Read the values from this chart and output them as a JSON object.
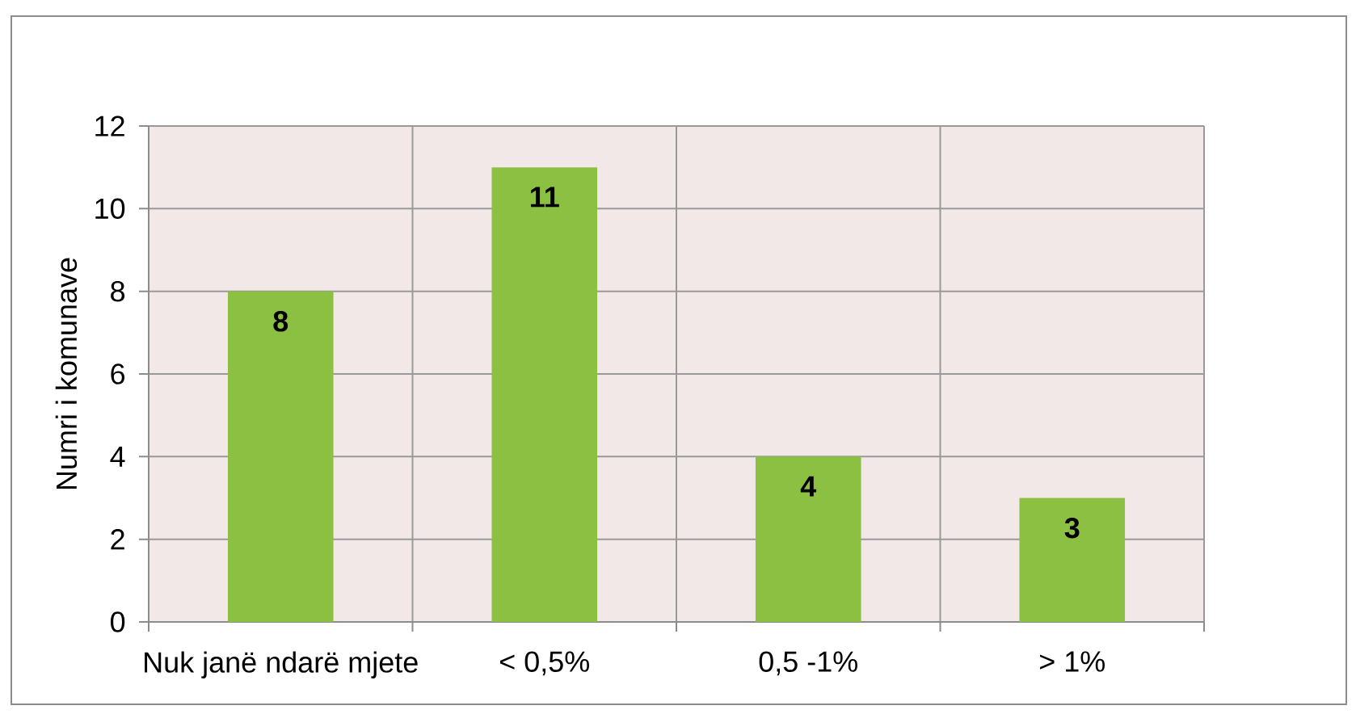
{
  "chart_data": {
    "type": "bar",
    "ylabel": "Numri i komunave",
    "categories": [
      "Nuk janë ndarë mjete",
      "< 0,5%",
      "0,5 -1%",
      "> 1%"
    ],
    "values": [
      8,
      11,
      4,
      3
    ],
    "color": "#8cc043",
    "ylim": [
      0,
      12
    ],
    "yticks": [
      0,
      2,
      4,
      6,
      8,
      10,
      12
    ],
    "grid": true,
    "data_labels": true
  }
}
